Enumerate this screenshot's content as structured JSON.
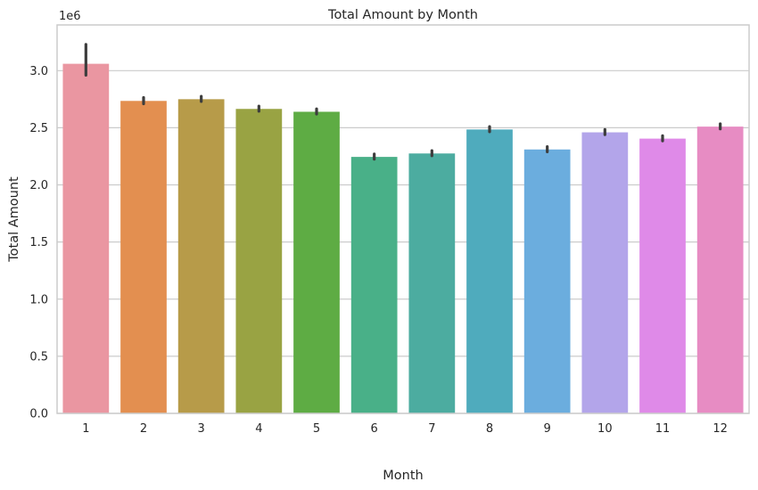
{
  "chart_data": {
    "type": "bar",
    "title": "Total Amount by Month",
    "xlabel": "Month",
    "ylabel": "Total Amount",
    "y_multiplier_label": "1e6",
    "categories": [
      "1",
      "2",
      "3",
      "4",
      "5",
      "6",
      "7",
      "8",
      "9",
      "10",
      "11",
      "12"
    ],
    "values": [
      3.06,
      2.735,
      2.75,
      2.665,
      2.64,
      2.245,
      2.275,
      2.485,
      2.31,
      2.46,
      2.405,
      2.51
    ],
    "error_bars": [
      [
        2.96,
        3.23
      ],
      [
        2.71,
        2.765
      ],
      [
        2.73,
        2.775
      ],
      [
        2.645,
        2.69
      ],
      [
        2.62,
        2.665
      ],
      [
        2.225,
        2.27
      ],
      [
        2.255,
        2.3
      ],
      [
        2.465,
        2.51
      ],
      [
        2.29,
        2.335
      ],
      [
        2.44,
        2.485
      ],
      [
        2.385,
        2.43
      ],
      [
        2.49,
        2.535
      ]
    ],
    "ylim": [
      0,
      3.4
    ],
    "yticks": [
      0.0,
      0.5,
      1.0,
      1.5,
      2.0,
      2.5,
      3.0
    ],
    "ytick_labels": [
      "0.0",
      "0.5",
      "1.0",
      "1.5",
      "2.0",
      "2.5",
      "3.0"
    ],
    "grid": "horizontal",
    "colors": [
      "#ea96a1",
      "#e38f50",
      "#b79b49",
      "#99a343",
      "#5eac44",
      "#49b088",
      "#4caca0",
      "#4fabbd",
      "#6badde",
      "#b3a5ea",
      "#df8ae8",
      "#e78cc3"
    ],
    "error_color": "#3d3d3d",
    "grid_color": "#cccccc",
    "frame_color": "#cccccc"
  }
}
